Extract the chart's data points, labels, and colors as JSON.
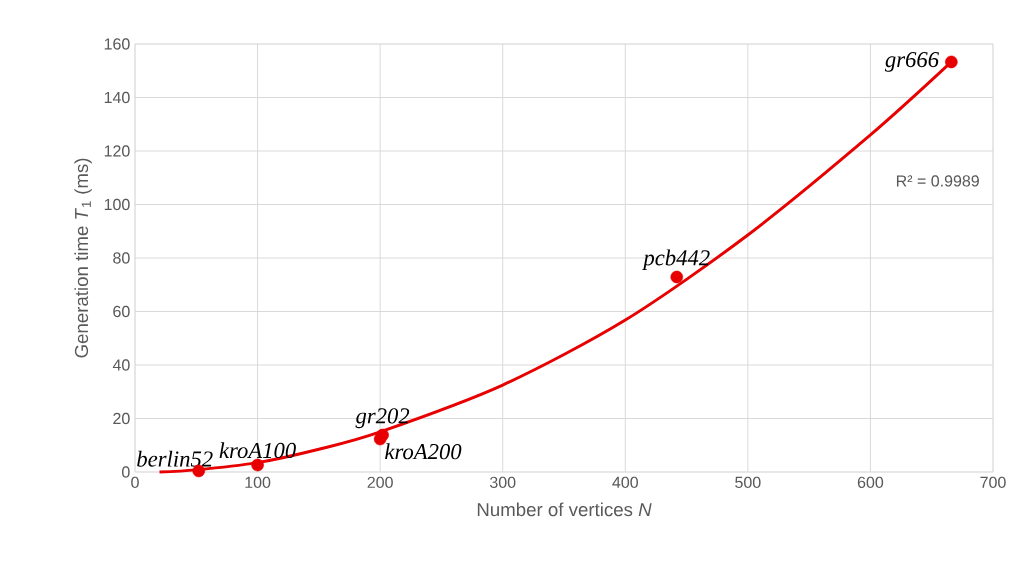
{
  "chart_data": {
    "type": "scatter",
    "xlabel": "Number of vertices *N*",
    "ylabel": "Generation time *T*$_{1}$ (ms)",
    "series": [
      {
        "color": "#e80000",
        "marker": "circle",
        "x": [
          52,
          100,
          202,
          200,
          442,
          666
        ],
        "values": [
          0.4,
          2.6,
          13.8,
          12.3,
          72.9,
          153.3
        ]
      },
      {
        "type": "line",
        "marker": "none",
        "color": "#e80000",
        "x": [
          20,
          50,
          100,
          150,
          200,
          300,
          400,
          500,
          600,
          666
        ],
        "values": [
          0,
          0.8,
          3.5,
          8.5,
          15,
          32.5,
          56.8,
          88.6,
          126,
          153.3
        ]
      }
    ],
    "annotations": [
      {
        "text": "berlin52",
        "x": 52,
        "y": 0.4
      },
      {
        "text": "kroA100",
        "x": 100,
        "y": 2.6
      },
      {
        "text": "gr202",
        "x": 202,
        "y": 13.8
      },
      {
        "text": "kroA200",
        "x": 200,
        "y": 12.3
      },
      {
        "text": "pcb442",
        "x": 442,
        "y": 72.9
      },
      {
        "text": "gr666",
        "x": 666,
        "y": 153.3
      },
      "R² = 0.9989"
    ],
    "xlim": [
      0,
      700
    ],
    "ylim": [
      0,
      160
    ],
    "xticks": [
      0,
      100,
      200,
      300,
      400,
      500,
      600,
      700
    ],
    "yticks": [
      0,
      20,
      40,
      60,
      80,
      100,
      120,
      140,
      160
    ],
    "grid": true,
    "line_style": "solid"
  }
}
